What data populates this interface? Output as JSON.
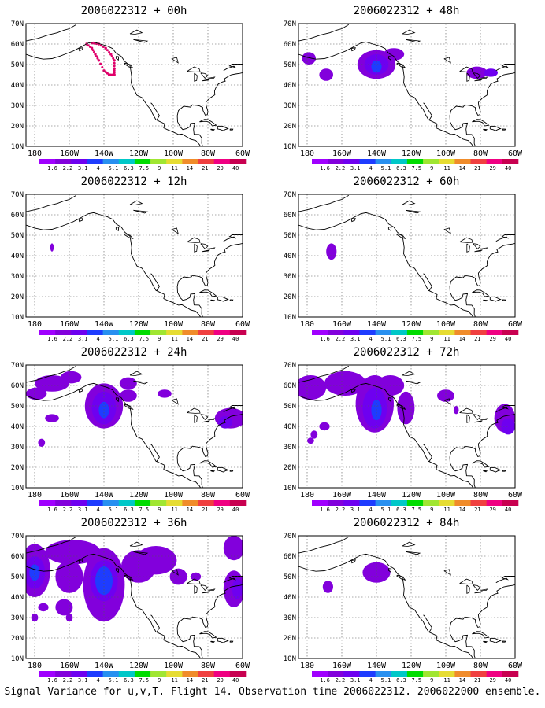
{
  "colorbar": {
    "labels": [
      "1.6",
      "2.2",
      "3.1",
      "4",
      "5.1",
      "6.3",
      "7.5",
      "9",
      "11",
      "14",
      "21",
      "29",
      "40"
    ],
    "colors": [
      "#a000ff",
      "#8200dc",
      "#6e00f0",
      "#1e3cff",
      "#2890f0",
      "#00c8c8",
      "#00dc00",
      "#a0e632",
      "#e6dc32",
      "#f08c2a",
      "#f04040",
      "#f00082",
      "#c80050"
    ]
  },
  "lat_labels": [
    "70N",
    "60N",
    "50N",
    "40N",
    "30N",
    "20N",
    "10N"
  ],
  "lon_labels": [
    "180",
    "160W",
    "140W",
    "120W",
    "100W",
    "80W",
    "60W"
  ],
  "panels": [
    {
      "title": "2006022312 + 00h"
    },
    {
      "title": "2006022312 + 48h"
    },
    {
      "title": "2006022312 + 12h"
    },
    {
      "title": "2006022312 + 60h"
    },
    {
      "title": "2006022312 + 24h"
    },
    {
      "title": "2006022312 + 72h"
    },
    {
      "title": "2006022312 + 36h"
    },
    {
      "title": "2006022312 + 84h"
    }
  ],
  "caption": "Signal Variance for u,v,T. Flight 14. Observation time 2006022312. 2006022000 ensemble."
}
